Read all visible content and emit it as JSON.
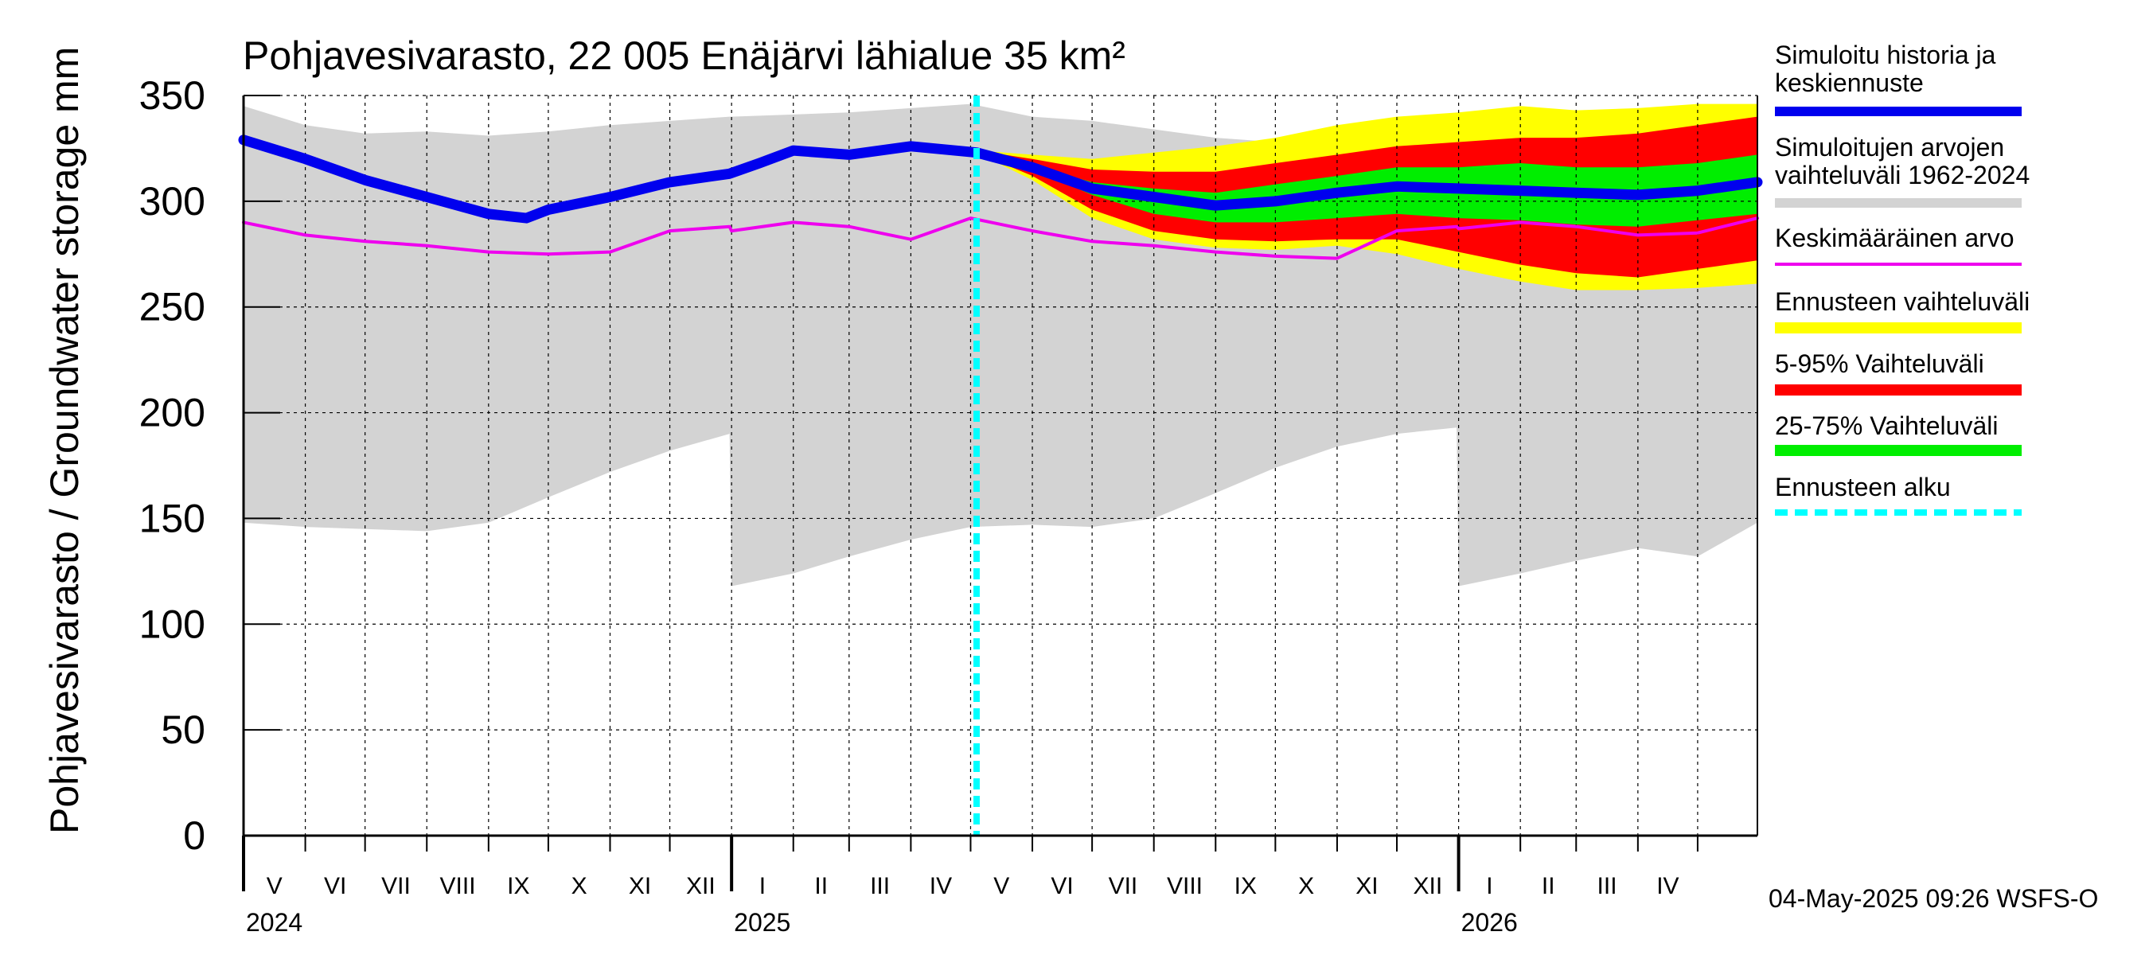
{
  "title": "Pohjavesivarasto, 22 005 Enäjärvi lähialue 35 km²",
  "y_axis_label": "Pohjavesivarasto / Groundwater storage   mm",
  "footer": "04-May-2025 09:26 WSFS-O",
  "legend": [
    {
      "label_lines": [
        "Simuloitu historia ja",
        "keskiennuste"
      ],
      "color": "#0000ee",
      "style": "solid"
    },
    {
      "label_lines": [
        "Simuloitujen arvojen",
        "vaihteluväli 1962-2024"
      ],
      "color": "#d3d3d3",
      "style": "solid"
    },
    {
      "label_lines": [
        "Keskimääräinen arvo"
      ],
      "color": "#ee00ee",
      "style": "solid"
    },
    {
      "label_lines": [
        "Ennusteen vaihteluväli"
      ],
      "color": "#ffff00",
      "style": "solid"
    },
    {
      "label_lines": [
        "5-95% Vaihteluväli"
      ],
      "color": "#ff0000",
      "style": "solid"
    },
    {
      "label_lines": [
        "25-75% Vaihteluväli"
      ],
      "color": "#00ee00",
      "style": "solid"
    },
    {
      "label_lines": [
        "Ennusteen alku"
      ],
      "color": "#00ffff",
      "style": "dashed"
    }
  ],
  "chart_data": {
    "type": "area",
    "title": "Pohjavesivarasto, 22 005 Enäjärvi lähialue 35 km²",
    "ylabel": "Pohjavesivarasto / Groundwater storage   mm",
    "xlabel": "",
    "ylim": [
      0,
      350
    ],
    "yticks": [
      0,
      50,
      100,
      150,
      200,
      250,
      300,
      350
    ],
    "xlim": [
      "2024-05-01",
      "2026-05-31"
    ],
    "grid": true,
    "legend_position": "right",
    "month_labels": [
      "V",
      "VI",
      "VII",
      "VIII",
      "IX",
      "X",
      "XI",
      "XII",
      "I",
      "II",
      "III",
      "IV",
      "V",
      "VI",
      "VII",
      "VIII",
      "IX",
      "X",
      "XI",
      "XII",
      "I",
      "II",
      "III",
      "IV"
    ],
    "year_labels": [
      {
        "label": "2024",
        "date": "2024-05-01"
      },
      {
        "label": "2025",
        "date": "2025-01-01"
      },
      {
        "label": "2026",
        "date": "2026-01-01"
      }
    ],
    "forecast_start": "2025-05-04",
    "series": [
      {
        "name": "Simuloitujen arvojen vaihteluväli 1962-2024",
        "kind": "band",
        "x": [
          "2024-05-01",
          "2024-06-01",
          "2024-07-01",
          "2024-08-01",
          "2024-09-01",
          "2024-10-01",
          "2024-11-01",
          "2024-12-01",
          "2024-12-31",
          "2025-01-01",
          "2025-02-01",
          "2025-03-01",
          "2025-04-01",
          "2025-05-01",
          "2025-06-01",
          "2025-07-01",
          "2025-08-01",
          "2025-09-01",
          "2025-10-01",
          "2025-11-01",
          "2025-12-01",
          "2025-12-31",
          "2026-01-01",
          "2026-02-01",
          "2026-03-01",
          "2026-04-01",
          "2026-05-01",
          "2026-05-31"
        ],
        "upper": [
          345,
          336,
          332,
          333,
          331,
          333,
          336,
          338,
          340,
          340,
          341,
          342,
          344,
          346,
          340,
          338,
          334,
          330,
          328,
          326,
          327,
          329,
          330,
          332,
          334,
          340,
          345,
          346
        ],
        "lower": [
          148,
          146,
          145,
          144,
          148,
          160,
          172,
          182,
          190,
          118,
          124,
          132,
          140,
          146,
          147,
          146,
          150,
          162,
          174,
          184,
          190,
          193,
          118,
          124,
          130,
          136,
          132,
          148
        ]
      },
      {
        "name": "Ennusteen vaihteluväli",
        "kind": "band",
        "x": [
          "2025-05-04",
          "2025-06-01",
          "2025-07-01",
          "2025-08-01",
          "2025-09-01",
          "2025-10-01",
          "2025-11-01",
          "2025-12-01",
          "2026-01-01",
          "2026-02-01",
          "2026-03-01",
          "2026-04-01",
          "2026-05-01",
          "2026-05-31"
        ],
        "upper": [
          324,
          322,
          320,
          323,
          326,
          330,
          336,
          340,
          342,
          345,
          343,
          344,
          346,
          346
        ],
        "lower": [
          323,
          310,
          292,
          282,
          278,
          277,
          279,
          275,
          268,
          262,
          258,
          258,
          259,
          261
        ]
      },
      {
        "name": "5-95% Vaihteluväli",
        "kind": "band",
        "x": [
          "2025-05-04",
          "2025-06-01",
          "2025-07-01",
          "2025-08-01",
          "2025-09-01",
          "2025-10-01",
          "2025-11-01",
          "2025-12-01",
          "2026-01-01",
          "2026-02-01",
          "2026-03-01",
          "2026-04-01",
          "2026-05-01",
          "2026-05-31"
        ],
        "upper": [
          324,
          320,
          315,
          314,
          314,
          318,
          322,
          326,
          328,
          330,
          330,
          332,
          336,
          340
        ],
        "lower": [
          323,
          312,
          296,
          286,
          282,
          281,
          282,
          282,
          276,
          270,
          266,
          264,
          268,
          272
        ]
      },
      {
        "name": "25-75% Vaihteluväli",
        "kind": "band",
        "x": [
          "2025-05-04",
          "2025-06-01",
          "2025-07-01",
          "2025-08-01",
          "2025-09-01",
          "2025-10-01",
          "2025-11-01",
          "2025-12-01",
          "2026-01-01",
          "2026-02-01",
          "2026-03-01",
          "2026-04-01",
          "2026-05-01",
          "2026-05-31"
        ],
        "upper": [
          323,
          317,
          309,
          306,
          304,
          308,
          312,
          316,
          316,
          318,
          316,
          316,
          318,
          322
        ],
        "lower": [
          323,
          315,
          303,
          294,
          290,
          290,
          292,
          294,
          292,
          291,
          289,
          288,
          291,
          294
        ]
      },
      {
        "name": "Keskimääräinen arvo",
        "kind": "line",
        "x": [
          "2024-05-01",
          "2024-06-01",
          "2024-07-01",
          "2024-08-01",
          "2024-09-01",
          "2024-10-01",
          "2024-11-01",
          "2024-12-01",
          "2024-12-31",
          "2025-01-01",
          "2025-02-01",
          "2025-03-01",
          "2025-04-01",
          "2025-05-01",
          "2025-06-01",
          "2025-07-01",
          "2025-08-01",
          "2025-09-01",
          "2025-10-01",
          "2025-11-01",
          "2025-12-01",
          "2025-12-31",
          "2026-01-01",
          "2026-02-01",
          "2026-03-01",
          "2026-04-01",
          "2026-05-01",
          "2026-05-31"
        ],
        "values": [
          290,
          284,
          281,
          279,
          276,
          275,
          276,
          286,
          288,
          286,
          290,
          288,
          282,
          292,
          286,
          281,
          279,
          276,
          274,
          273,
          286,
          288,
          287,
          290,
          288,
          284,
          285,
          292
        ]
      },
      {
        "name": "Simuloitu historia ja keskiennuste",
        "kind": "line",
        "x": [
          "2024-05-01",
          "2024-06-01",
          "2024-07-01",
          "2024-08-01",
          "2024-09-01",
          "2024-09-20",
          "2024-10-01",
          "2024-11-01",
          "2024-12-01",
          "2024-12-31",
          "2025-01-15",
          "2025-02-01",
          "2025-03-01",
          "2025-04-01",
          "2025-05-04",
          "2025-06-01",
          "2025-07-01",
          "2025-08-01",
          "2025-09-01",
          "2025-10-01",
          "2025-11-01",
          "2025-12-01",
          "2026-01-01",
          "2026-02-01",
          "2026-03-01",
          "2026-04-01",
          "2026-05-01",
          "2026-05-31"
        ],
        "values": [
          329,
          320,
          310,
          302,
          294,
          292,
          296,
          302,
          309,
          313,
          318,
          324,
          322,
          326,
          323,
          316,
          306,
          302,
          298,
          300,
          304,
          307,
          306,
          305,
          304,
          303,
          305,
          309
        ]
      },
      {
        "name": "Ennusteen alku",
        "kind": "vline",
        "x": [
          "2025-05-04"
        ]
      }
    ]
  }
}
